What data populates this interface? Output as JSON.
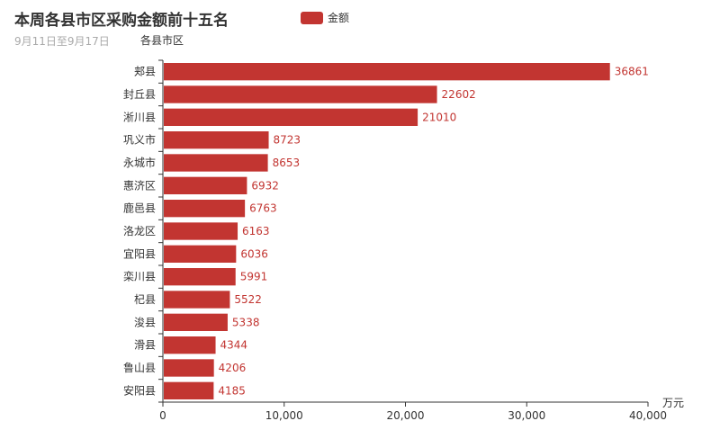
{
  "chart_data": {
    "type": "bar",
    "orientation": "horizontal",
    "title": "本周各县市区采购金额前十五名",
    "subtitle": "9月11日至9月17日",
    "ylabel": "各县市区",
    "xlabel": "万元",
    "legend": [
      "金额"
    ],
    "legend_position": "top",
    "color": "#c23531",
    "xlim": [
      0,
      40000
    ],
    "xticks": [
      "0",
      "10,000",
      "20,000",
      "30,000",
      "40,000"
    ],
    "xtick_values": [
      0,
      10000,
      20000,
      30000,
      40000
    ],
    "categories": [
      "郏县",
      "封丘县",
      "淅川县",
      "巩义市",
      "永城市",
      "惠济区",
      "鹿邑县",
      "洛龙区",
      "宜阳县",
      "栾川县",
      "杞县",
      "浚县",
      "滑县",
      "鲁山县",
      "安阳县"
    ],
    "values": [
      36861,
      22602,
      21010,
      8723,
      8653,
      6932,
      6763,
      6163,
      6036,
      5991,
      5522,
      5338,
      4344,
      4206,
      4185
    ]
  }
}
